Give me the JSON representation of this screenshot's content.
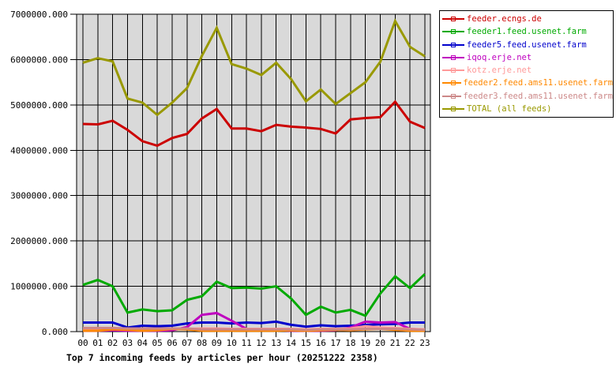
{
  "page": {
    "background": "#ffffff"
  },
  "chart_data": {
    "type": "line",
    "title": "Top 7 incoming feeds by articles per hour (20251222 2358)",
    "xlabel": "",
    "ylabel": "",
    "x_labels": [
      "00",
      "01",
      "02",
      "03",
      "04",
      "05",
      "06",
      "07",
      "08",
      "09",
      "10",
      "11",
      "12",
      "13",
      "14",
      "15",
      "16",
      "17",
      "18",
      "19",
      "20",
      "21",
      "22",
      "23"
    ],
    "ylim": [
      0,
      7000000
    ],
    "yticks": [
      0,
      1000000,
      2000000,
      3000000,
      4000000,
      5000000,
      6000000,
      7000000
    ],
    "ytick_labels": [
      "0.000",
      "1000000.000",
      "2000000.000",
      "3000000.000",
      "4000000.000",
      "5000000.000",
      "6000000.000",
      "7000000.000"
    ],
    "grid": true,
    "grid_color": "#000000",
    "plot_background": "#d9d9d9",
    "legend_position": "outside-right-top",
    "series": [
      {
        "name": "feeder.ecngs.de",
        "color": "#cc0000",
        "values": [
          4580000,
          4570000,
          4650000,
          4450000,
          4200000,
          4100000,
          4270000,
          4360000,
          4700000,
          4910000,
          4480000,
          4480000,
          4420000,
          4560000,
          4520000,
          4500000,
          4470000,
          4370000,
          4680000,
          4710000,
          4730000,
          5070000,
          4630000,
          4490000
        ]
      },
      {
        "name": "feeder1.feed.usenet.farm",
        "color": "#00aa00",
        "values": [
          1030000,
          1140000,
          1000000,
          420000,
          490000,
          450000,
          470000,
          700000,
          780000,
          1100000,
          960000,
          970000,
          950000,
          1000000,
          730000,
          370000,
          550000,
          420000,
          480000,
          350000,
          840000,
          1220000,
          960000,
          1270000
        ]
      },
      {
        "name": "feeder5.feed.usenet.farm",
        "color": "#0000cc",
        "values": [
          200000,
          200000,
          200000,
          90000,
          130000,
          120000,
          130000,
          180000,
          200000,
          200000,
          180000,
          200000,
          190000,
          220000,
          150000,
          110000,
          140000,
          120000,
          130000,
          150000,
          160000,
          170000,
          200000,
          200000
        ]
      },
      {
        "name": "iqoq.erje.net",
        "color": "#bf00bf",
        "values": [
          20000,
          20000,
          30000,
          20000,
          20000,
          20000,
          30000,
          100000,
          370000,
          410000,
          240000,
          60000,
          30000,
          30000,
          20000,
          20000,
          20000,
          30000,
          90000,
          220000,
          200000,
          210000,
          60000,
          40000
        ]
      },
      {
        "name": "kotz.erje.net",
        "color": "#ff9999",
        "values": [
          60000,
          60000,
          70000,
          60000,
          60000,
          60000,
          60000,
          60000,
          70000,
          70000,
          60000,
          60000,
          60000,
          60000,
          60000,
          50000,
          60000,
          60000,
          70000,
          120000,
          90000,
          80000,
          60000,
          50000
        ]
      },
      {
        "name": "feeder2.feed.ams11.usenet.farm",
        "color": "#ff8800",
        "values": [
          20000,
          20000,
          50000,
          40000,
          20000,
          30000,
          60000,
          50000,
          20000,
          20000,
          20000,
          20000,
          20000,
          20000,
          30000,
          20000,
          30000,
          40000,
          30000,
          50000,
          60000,
          40000,
          20000,
          20000
        ]
      },
      {
        "name": "feeder3.feed.ams11.usenet.farm",
        "color": "#cc8888",
        "values": [
          80000,
          80000,
          80000,
          70000,
          70000,
          70000,
          70000,
          70000,
          50000,
          50000,
          50000,
          50000,
          50000,
          50000,
          50000,
          40000,
          50000,
          50000,
          50000,
          60000,
          60000,
          60000,
          50000,
          40000
        ]
      },
      {
        "name": "TOTAL (all feeds)",
        "color": "#999900",
        "values": [
          5930000,
          6030000,
          5960000,
          5140000,
          5050000,
          4780000,
          5050000,
          5370000,
          6080000,
          6700000,
          5900000,
          5800000,
          5660000,
          5930000,
          5570000,
          5080000,
          5340000,
          5020000,
          5260000,
          5500000,
          5950000,
          6850000,
          6280000,
          6070000
        ]
      }
    ]
  }
}
